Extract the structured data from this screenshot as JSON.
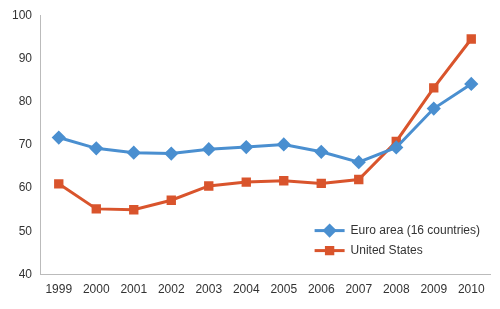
{
  "chart_data": {
    "type": "line",
    "categories": [
      "1999",
      "2000",
      "2001",
      "2002",
      "2003",
      "2004",
      "2005",
      "2006",
      "2007",
      "2008",
      "2009",
      "2010"
    ],
    "series": [
      {
        "name": "Euro area (16 countries)",
        "color": "#4a8fd0",
        "marker": "diamond",
        "line_style": "solid",
        "values": [
          71.7,
          69.2,
          68.2,
          68.0,
          69.0,
          69.5,
          70.1,
          68.4,
          66.0,
          69.4,
          78.4,
          84.1
        ]
      },
      {
        "name": "United States",
        "color": "#d9542c",
        "marker": "square",
        "line_style": "solid",
        "values": [
          61.0,
          55.2,
          55.0,
          57.2,
          60.5,
          61.4,
          61.7,
          61.1,
          62.0,
          70.8,
          83.2,
          94.5
        ]
      }
    ],
    "ylim": [
      40,
      100
    ],
    "yticks": [
      40,
      50,
      60,
      70,
      80,
      90,
      100
    ],
    "grid": false,
    "legend": "lower right"
  }
}
